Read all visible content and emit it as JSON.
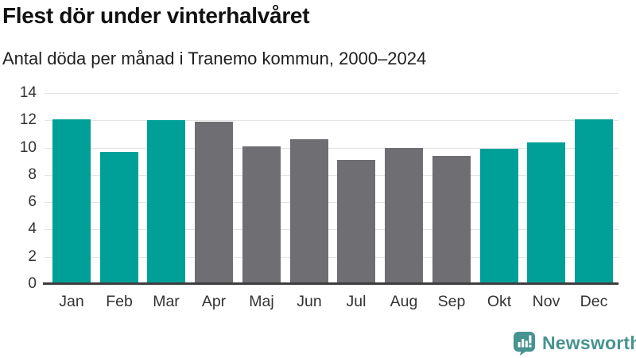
{
  "header": {
    "title": "Flest dör under vinterhalvåret",
    "subtitle": "Antal döda per månad i Tranemo kommun, 2000–2024"
  },
  "chart_data": {
    "type": "bar",
    "title": "Flest dör under vinterhalvåret",
    "subtitle": "Antal döda per månad i Tranemo kommun, 2000–2024",
    "categories": [
      "Jan",
      "Feb",
      "Mar",
      "Apr",
      "Maj",
      "Jun",
      "Jul",
      "Aug",
      "Sep",
      "Okt",
      "Nov",
      "Dec"
    ],
    "values": [
      12.1,
      9.7,
      12.0,
      11.9,
      10.1,
      10.6,
      9.1,
      10.0,
      9.4,
      9.9,
      10.4,
      12.1
    ],
    "highlighted": [
      true,
      true,
      true,
      false,
      false,
      false,
      false,
      false,
      false,
      true,
      true,
      true
    ],
    "xlabel": "",
    "ylabel": "",
    "ylim": [
      0,
      14
    ],
    "yticks": [
      0,
      2,
      4,
      6,
      8,
      10,
      12,
      14
    ],
    "grid": true,
    "legend": "none",
    "colors": {
      "highlight": "#00a099",
      "default": "#6e6e73",
      "gridline": "#e3e3e3",
      "axis": "#3e3e3e",
      "tick_text": "#333333"
    }
  },
  "footer": {
    "brand": "Newsworthy",
    "brand_color": "#47938f"
  }
}
